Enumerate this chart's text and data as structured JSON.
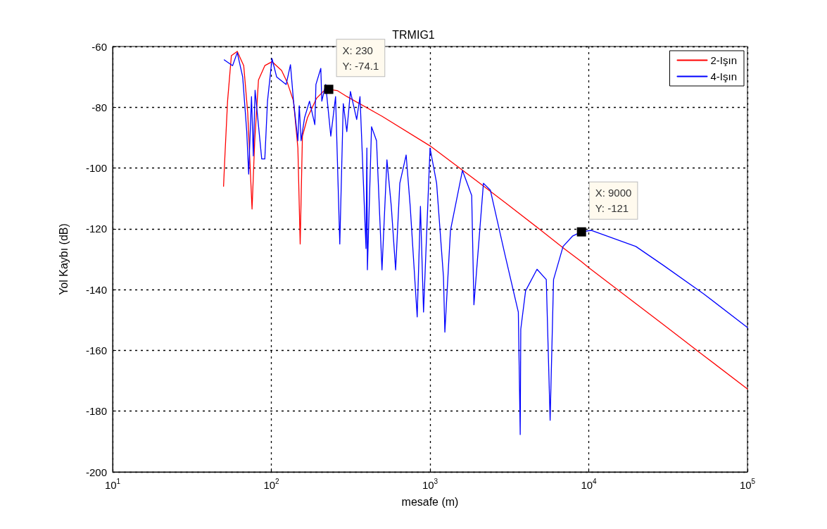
{
  "chart_data": {
    "type": "line",
    "title": "TRMIG1",
    "xlabel": "mesafe (m)",
    "ylabel": "Yol Kaybı (dB)",
    "log": "x",
    "grid": true,
    "legend": "top right",
    "marker": "none",
    "line_style": "solid",
    "xlim": [
      10,
      100000
    ],
    "xticks": [
      {
        "value": 10,
        "label": "10$^{1}$"
      },
      {
        "value": 100,
        "label": "10$^{2}$"
      },
      {
        "value": 1000,
        "label": "10$^{3}$"
      },
      {
        "value": 10000,
        "label": "10$^{4}$"
      },
      {
        "value": 100000,
        "label": "10$^{5}$"
      }
    ],
    "ylim": [
      -200,
      -60
    ],
    "yticks": [
      -200,
      -180,
      -160,
      -140,
      -120,
      -100,
      -80,
      -60
    ],
    "annotations": [
      {
        "text": "X: 230\nY: -74.1",
        "x": 230,
        "y": -74.1
      },
      {
        "text": "X: 9000\nY: -121",
        "x": 9000,
        "y": -121
      }
    ],
    "series": [
      {
        "name": "2-Işın",
        "color": "#ff0000",
        "x": [
          50,
          51,
          53,
          56,
          61,
          67,
          71,
          75.6,
          78.6,
          83,
          91,
          101,
          116,
          126,
          138,
          147,
          152,
          157,
          169,
          193,
          220,
          230,
          260,
          300,
          500,
          1000,
          2000,
          3000,
          5000,
          7000,
          9000,
          10000,
          20000,
          30000,
          50000,
          100000
        ],
        "values": [
          -106,
          -96,
          -78,
          -63,
          -61.6,
          -66.3,
          -81.8,
          -113.5,
          -91,
          -71,
          -66.3,
          -65,
          -67.9,
          -71.8,
          -78,
          -93.4,
          -125,
          -89.5,
          -83.4,
          -77,
          -74,
          -74.1,
          -74.5,
          -76.5,
          -83,
          -92.7,
          -104.5,
          -111.5,
          -120.5,
          -126.5,
          -130.8,
          -132.8,
          -144.8,
          -151.8,
          -160.7,
          -172.7
        ]
      },
      {
        "name": "4-Işın",
        "color": "#0000ff",
        "x": [
          50.5,
          57,
          61,
          66,
          70,
          72,
          75,
          77,
          79,
          87,
          91,
          94.6,
          101,
          108,
          124,
          132,
          138,
          147,
          150,
          154,
          162,
          174,
          188,
          191,
          205,
          208,
          220,
          237,
          254,
          270,
          284,
          299,
          315,
          345,
          362,
          395,
          400,
          403,
          428,
          460,
          498,
          535,
          570,
          607,
          645,
          707,
          750,
          830,
          870,
          910,
          1000,
          1100,
          1215,
          1240,
          1345,
          1600,
          1830,
          1890,
          2170,
          2400,
          2950,
          3600,
          3700,
          3730,
          4000,
          4720,
          5400,
          5710,
          6000,
          6890,
          7900,
          9000,
          10400,
          19800,
          29500,
          53000,
          100000
        ],
        "values": [
          -64.4,
          -66.3,
          -62,
          -70,
          -88,
          -102,
          -76.5,
          -96,
          -74.4,
          -97,
          -97,
          -78,
          -64,
          -70,
          -72.5,
          -66,
          -78,
          -91,
          -79.5,
          -91,
          -83.4,
          -78,
          -85.7,
          -72.5,
          -67.2,
          -78,
          -72.5,
          -89.5,
          -76.5,
          -125,
          -78.8,
          -88,
          -74.8,
          -84,
          -76.5,
          -126.5,
          -93.4,
          -133.5,
          -86.4,
          -91,
          -133.5,
          -97.3,
          -112.6,
          -133.5,
          -105,
          -95.7,
          -112.6,
          -149,
          -112.6,
          -147.4,
          -93.4,
          -105,
          -135.8,
          -154,
          -120.5,
          -100.8,
          -109,
          -145,
          -105,
          -107.3,
          -128,
          -147.4,
          -187.7,
          -153,
          -140.4,
          -133.3,
          -136.7,
          -183,
          -136.7,
          -125.8,
          -122.4,
          -121,
          -120.5,
          -125.8,
          -132,
          -141.4,
          -152.5
        ]
      }
    ]
  }
}
